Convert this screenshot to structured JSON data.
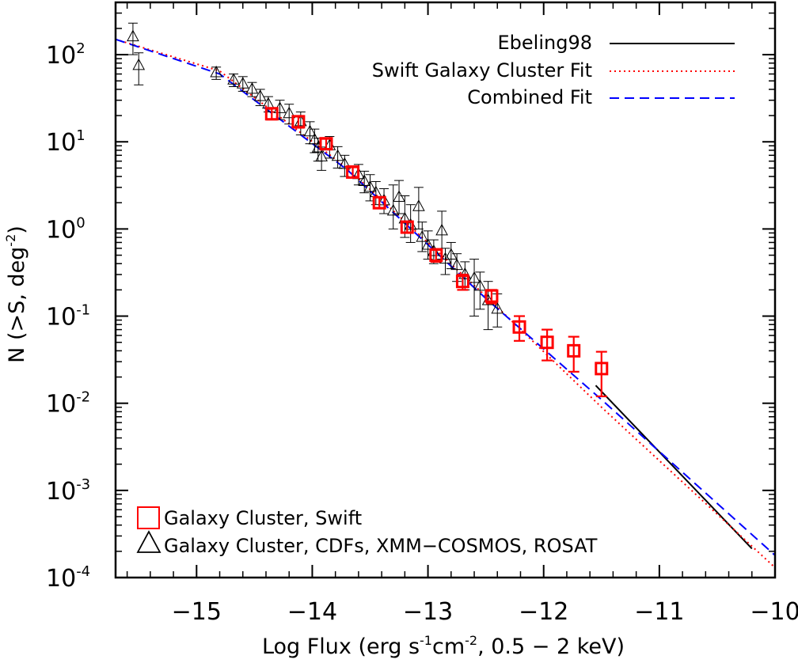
{
  "chart_data": {
    "type": "scatter",
    "title": "",
    "xlabel": {
      "base": "Log Flux (erg s",
      "exp1": "-1",
      "mid": "cm",
      "exp2": "-2",
      "tail": ", 0.5 − 2 keV)"
    },
    "ylabel": {
      "base": "N (>S, deg",
      "exp": "-2",
      "tail": ")"
    },
    "xlim": [
      -15.7,
      -10.0
    ],
    "ylim_log10": [
      -4,
      2.6
    ],
    "y_scale": "log",
    "x_ticks": [
      {
        "value": -15,
        "label": "−15"
      },
      {
        "value": -14,
        "label": "−14"
      },
      {
        "value": -13,
        "label": "−13"
      },
      {
        "value": -12,
        "label": "−12"
      },
      {
        "value": -11,
        "label": "−11"
      },
      {
        "value": -10,
        "label": "−10"
      }
    ],
    "y_ticks": [
      {
        "exp_value": 2,
        "base": "10",
        "exp": "2"
      },
      {
        "exp_value": 1,
        "base": "10",
        "exp": "1"
      },
      {
        "exp_value": 0,
        "base": "10",
        "exp": "0"
      },
      {
        "exp_value": -1,
        "base": "10",
        "exp": "-1"
      },
      {
        "exp_value": -2,
        "base": "10",
        "exp": "-2"
      },
      {
        "exp_value": -3,
        "base": "10",
        "exp": "-3"
      },
      {
        "exp_value": -4,
        "base": "10",
        "exp": "-4"
      }
    ],
    "line_legend": {
      "position": "top-right",
      "entries": [
        {
          "label": "Ebeling98",
          "style": "solid",
          "color": "#000000"
        },
        {
          "label": "Swift Galaxy Cluster Fit",
          "style": "dotted",
          "color": "#ff0000"
        },
        {
          "label": "Combined Fit",
          "style": "dashed",
          "color": "#0000ff"
        }
      ]
    },
    "marker_legend": {
      "position": "bottom-left",
      "entries": [
        {
          "label": "Galaxy Cluster, Swift",
          "marker": "square",
          "color": "#ff0000"
        },
        {
          "label": "Galaxy Cluster, CDFs, XMM−COSMOS, ROSAT",
          "marker": "triangle",
          "color": "#000000"
        }
      ]
    },
    "series": [
      {
        "name": "Galaxy Cluster, Swift",
        "marker": "square",
        "color": "#ff0000",
        "points": [
          {
            "x": -14.35,
            "y": 21,
            "lo": 18,
            "hi": 24
          },
          {
            "x": -14.12,
            "y": 17,
            "lo": 14.5,
            "hi": 19.5
          },
          {
            "x": -13.88,
            "y": 9.5,
            "lo": 8.3,
            "hi": 10.8
          },
          {
            "x": -13.65,
            "y": 4.5,
            "lo": 3.9,
            "hi": 5.1
          },
          {
            "x": -13.42,
            "y": 2.0,
            "lo": 1.75,
            "hi": 2.3
          },
          {
            "x": -13.18,
            "y": 1.05,
            "lo": 0.9,
            "hi": 1.2
          },
          {
            "x": -12.93,
            "y": 0.5,
            "lo": 0.42,
            "hi": 0.59
          },
          {
            "x": -12.7,
            "y": 0.25,
            "lo": 0.2,
            "hi": 0.3
          },
          {
            "x": -12.45,
            "y": 0.17,
            "lo": 0.14,
            "hi": 0.2
          },
          {
            "x": -12.21,
            "y": 0.075,
            "lo": 0.052,
            "hi": 0.1
          },
          {
            "x": -11.97,
            "y": 0.05,
            "lo": 0.031,
            "hi": 0.07
          },
          {
            "x": -11.74,
            "y": 0.04,
            "lo": 0.023,
            "hi": 0.058
          },
          {
            "x": -11.5,
            "y": 0.025,
            "lo": 0.012,
            "hi": 0.039
          }
        ]
      },
      {
        "name": "Galaxy Cluster, CDFs, XMM−COSMOS, ROSAT",
        "marker": "triangle",
        "color": "#000000",
        "points": [
          {
            "x": -15.55,
            "y": 160,
            "lo": 100,
            "hi": 230
          },
          {
            "x": -15.5,
            "y": 75,
            "lo": 45,
            "hi": 105
          },
          {
            "x": -14.83,
            "y": 62,
            "lo": 52,
            "hi": 72
          },
          {
            "x": -14.68,
            "y": 51,
            "lo": 43,
            "hi": 60
          },
          {
            "x": -14.6,
            "y": 46,
            "lo": 38,
            "hi": 56
          },
          {
            "x": -14.52,
            "y": 40,
            "lo": 33,
            "hi": 48
          },
          {
            "x": -14.45,
            "y": 33,
            "lo": 26,
            "hi": 40
          },
          {
            "x": -14.38,
            "y": 27,
            "lo": 22,
            "hi": 33
          },
          {
            "x": -14.28,
            "y": 24,
            "lo": 18,
            "hi": 30
          },
          {
            "x": -14.2,
            "y": 21,
            "lo": 16,
            "hi": 27
          },
          {
            "x": -14.1,
            "y": 17,
            "lo": 12,
            "hi": 22
          },
          {
            "x": -14.02,
            "y": 13,
            "lo": 9.5,
            "hi": 17
          },
          {
            "x": -13.98,
            "y": 10.5,
            "lo": 7.5,
            "hi": 14
          },
          {
            "x": -13.95,
            "y": 8.5,
            "lo": 6,
            "hi": 11
          },
          {
            "x": -13.92,
            "y": 6.7,
            "lo": 4.7,
            "hi": 8.7
          },
          {
            "x": -13.85,
            "y": 9,
            "lo": 6.5,
            "hi": 11.5
          },
          {
            "x": -13.78,
            "y": 6.8,
            "lo": 5,
            "hi": 8.8
          },
          {
            "x": -13.72,
            "y": 5.5,
            "lo": 4,
            "hi": 7
          },
          {
            "x": -13.6,
            "y": 4.2,
            "lo": 3.2,
            "hi": 5.5
          },
          {
            "x": -13.55,
            "y": 3.5,
            "lo": 2.6,
            "hi": 4.6
          },
          {
            "x": -13.5,
            "y": 3.0,
            "lo": 2.1,
            "hi": 4.2
          },
          {
            "x": -13.45,
            "y": 2.6,
            "lo": 1.9,
            "hi": 3.5
          },
          {
            "x": -13.38,
            "y": 2.1,
            "lo": 1.5,
            "hi": 2.9
          },
          {
            "x": -13.3,
            "y": 1.6,
            "lo": 1.0,
            "hi": 3.2
          },
          {
            "x": -13.25,
            "y": 2.3,
            "lo": 1.5,
            "hi": 3.6
          },
          {
            "x": -13.2,
            "y": 1.3,
            "lo": 0.8,
            "hi": 2.4
          },
          {
            "x": -13.15,
            "y": 1.1,
            "lo": 0.7,
            "hi": 1.9
          },
          {
            "x": -13.08,
            "y": 1.8,
            "lo": 1.0,
            "hi": 3.0
          },
          {
            "x": -13.05,
            "y": 0.8,
            "lo": 0.55,
            "hi": 1.2
          },
          {
            "x": -13.0,
            "y": 0.65,
            "lo": 0.45,
            "hi": 0.95
          },
          {
            "x": -12.95,
            "y": 0.55,
            "lo": 0.4,
            "hi": 0.75
          },
          {
            "x": -12.88,
            "y": 0.95,
            "lo": 0.45,
            "hi": 1.6
          },
          {
            "x": -12.85,
            "y": 0.45,
            "lo": 0.3,
            "hi": 0.6
          },
          {
            "x": -12.8,
            "y": 0.5,
            "lo": 0.35,
            "hi": 0.7
          },
          {
            "x": -12.75,
            "y": 0.38,
            "lo": 0.25,
            "hi": 0.52
          },
          {
            "x": -12.68,
            "y": 0.3,
            "lo": 0.2,
            "hi": 0.42
          },
          {
            "x": -12.6,
            "y": 0.27,
            "lo": 0.1,
            "hi": 0.45
          },
          {
            "x": -12.55,
            "y": 0.22,
            "lo": 0.12,
            "hi": 0.32
          },
          {
            "x": -12.48,
            "y": 0.15,
            "lo": 0.07,
            "hi": 0.25
          },
          {
            "x": -12.4,
            "y": 0.12,
            "lo": 0.075,
            "hi": 0.18
          }
        ]
      }
    ],
    "fit_lines": [
      {
        "name": "Ebeling98",
        "style": "solid",
        "color": "#000000",
        "x": [
          -11.55,
          -10.2
        ],
        "y": [
          0.016,
          0.000215
        ]
      },
      {
        "name": "Swift Galaxy Cluster Fit",
        "style": "dotted",
        "color": "#ff0000",
        "x": [
          -15.7,
          -14.8,
          -13.7,
          -12.5,
          -11.5,
          -10.0
        ],
        "y": [
          150,
          65,
          5.0,
          0.17,
          0.009,
          0.00013
        ]
      },
      {
        "name": "Combined Fit",
        "style": "dashed",
        "color": "#0000ff",
        "x": [
          -15.7,
          -14.8,
          -13.7,
          -12.5,
          -11.5,
          -10.0
        ],
        "y": [
          150,
          60,
          4.8,
          0.16,
          0.011,
          0.00018
        ]
      }
    ]
  }
}
